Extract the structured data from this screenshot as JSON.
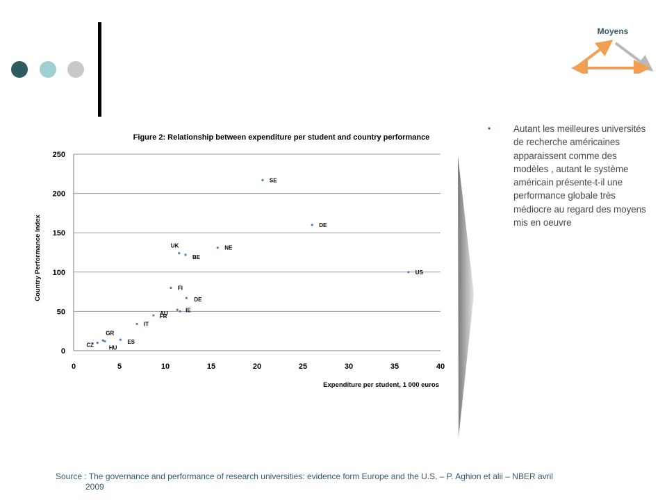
{
  "colors": {
    "dot1": "#2e5c5e",
    "dot2": "#9ecfd1",
    "dot3": "#c8c8c8",
    "accent_orange": "#f0a050",
    "accent_grey": "#b8b8b8",
    "point": "#4a7fc0",
    "text_teal": "#31596b"
  },
  "moyens": {
    "label": "Moyens",
    "icon": "triangle-arrows-icon"
  },
  "bullet": {
    "text": "Autant les meilleures universités de recherche américaines apparaissent comme des modèles , autant le système américain présente-t-il une performance globale très médiocre au regard des moyens mis en oeuvre"
  },
  "source": {
    "line1": "Source : The governance and performance of research universities: evidence form Europe and the U.S. – P. Aghion et alii – NBER avril",
    "line2": "2009"
  },
  "chart_data": {
    "type": "scatter",
    "title": "Figure 2: Relationship between expenditure per student and country performance",
    "xlabel": "Expenditure per student, 1 000 euros",
    "ylabel": "Country Performance Index",
    "xlim": [
      0,
      40
    ],
    "ylim": [
      0,
      250
    ],
    "xticks": [
      0,
      5,
      10,
      15,
      20,
      25,
      30,
      35,
      40
    ],
    "yticks": [
      0,
      50,
      100,
      150,
      200,
      250
    ],
    "grid": "horizontal",
    "points": [
      {
        "label": "SE",
        "x": 20.6,
        "y": 217
      },
      {
        "label": "DE",
        "x": 26.0,
        "y": 160
      },
      {
        "label": "US",
        "x": 36.5,
        "y": 100
      },
      {
        "label": "UK",
        "x": 11.5,
        "y": 124
      },
      {
        "label": "BE",
        "x": 12.2,
        "y": 122
      },
      {
        "label": "NE",
        "x": 15.7,
        "y": 131
      },
      {
        "label": "FI",
        "x": 10.6,
        "y": 80
      },
      {
        "label": "DE",
        "x": 12.3,
        "y": 67
      },
      {
        "label": "AU",
        "x": 11.3,
        "y": 52
      },
      {
        "label": "IE",
        "x": 11.6,
        "y": 50
      },
      {
        "label": "FR",
        "x": 8.7,
        "y": 45
      },
      {
        "label": "IT",
        "x": 6.9,
        "y": 34
      },
      {
        "label": "ES",
        "x": 5.1,
        "y": 14
      },
      {
        "label": "GR",
        "x": 3.2,
        "y": 13
      },
      {
        "label": "CZ",
        "x": 2.6,
        "y": 10
      },
      {
        "label": "HU",
        "x": 3.4,
        "y": 12
      }
    ]
  }
}
